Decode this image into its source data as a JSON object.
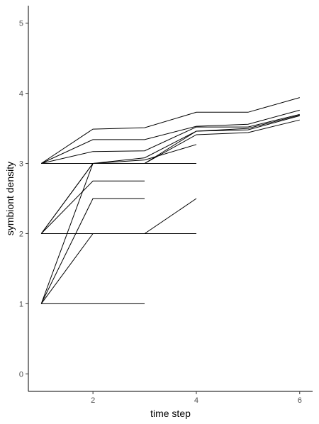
{
  "chart_data": {
    "type": "line",
    "xlabel": "time step",
    "ylabel": "symbiont density",
    "xlim": [
      0.75,
      6.25
    ],
    "ylim": [
      -0.25,
      5.25
    ],
    "x_ticks": [
      2,
      4,
      6
    ],
    "y_ticks": [
      0,
      1,
      2,
      3,
      4,
      5
    ],
    "grid": false,
    "legend": "none",
    "line_color": "#000000",
    "series": [
      {
        "x": [
          1,
          2,
          3,
          4,
          5,
          6
        ],
        "values": [
          3,
          3.49,
          3.51,
          3.73,
          3.73,
          3.94
        ]
      },
      {
        "x": [
          1,
          2,
          3,
          4,
          5,
          6
        ],
        "values": [
          3,
          3.34,
          3.34,
          3.53,
          3.56,
          3.76
        ]
      },
      {
        "x": [
          1,
          2,
          3,
          4,
          5,
          6
        ],
        "values": [
          3,
          3.17,
          3.18,
          3.52,
          3.52,
          3.7
        ]
      },
      {
        "x": [
          1,
          2,
          3,
          4,
          5,
          6
        ],
        "values": [
          3,
          3.0,
          3.08,
          3.46,
          3.5,
          3.69
        ]
      },
      {
        "x": [
          1,
          2,
          3,
          4,
          5,
          6
        ],
        "values": [
          3,
          3.0,
          3.0,
          3.41,
          3.44,
          3.62
        ]
      },
      {
        "x": [
          1,
          2,
          3,
          4,
          5,
          6
        ],
        "values": [
          2,
          3.0,
          3.0,
          3.46,
          3.48,
          3.68
        ]
      },
      {
        "x": [
          1,
          2,
          3,
          4
        ],
        "values": [
          3,
          3.0,
          3.05,
          3.27
        ]
      },
      {
        "x": [
          1,
          2,
          3,
          4
        ],
        "values": [
          2,
          3.0,
          3.0,
          3.0
        ]
      },
      {
        "x": [
          1,
          2,
          3
        ],
        "values": [
          2,
          2.75,
          2.75
        ]
      },
      {
        "x": [
          1,
          2,
          3
        ],
        "values": [
          1,
          2.5,
          2.5
        ]
      },
      {
        "x": [
          1,
          2,
          3,
          4
        ],
        "values": [
          2,
          2.0,
          2.0,
          2.5
        ]
      },
      {
        "x": [
          1,
          2,
          3,
          4
        ],
        "values": [
          2,
          2.0,
          2.0,
          2.0
        ]
      },
      {
        "x": [
          1,
          2,
          3
        ],
        "values": [
          1,
          2.0,
          2.0
        ]
      },
      {
        "x": [
          1,
          2,
          3
        ],
        "values": [
          1,
          3.0,
          3.0
        ]
      },
      {
        "x": [
          1,
          2,
          3
        ],
        "values": [
          1,
          1.0,
          1.0
        ]
      }
    ]
  }
}
